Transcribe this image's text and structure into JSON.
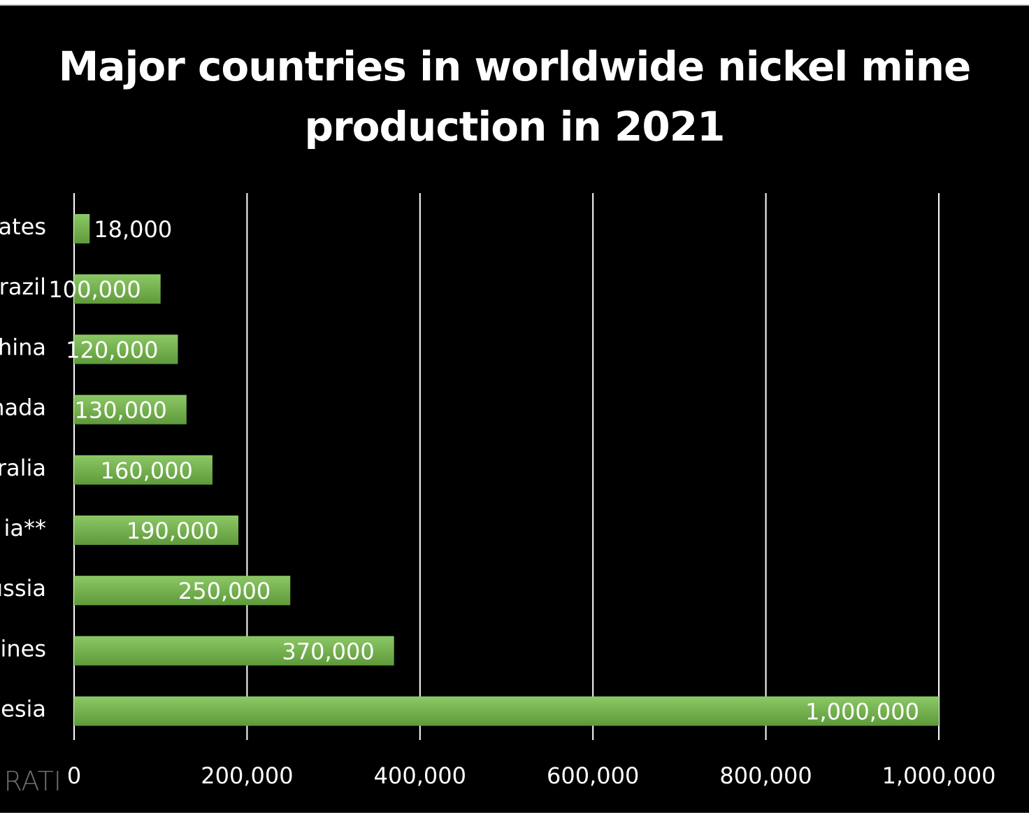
{
  "chart_data": {
    "type": "bar",
    "orientation": "horizontal",
    "title": "Major countries in worldwide nickel mine production in 2021",
    "categories": [
      "ates",
      "razil",
      "hina",
      "nada",
      "ralia",
      "ia**",
      "ussia",
      "ines",
      "esia"
    ],
    "values": [
      18000,
      100000,
      120000,
      130000,
      160000,
      190000,
      250000,
      370000,
      1000000
    ],
    "value_labels": [
      "18,000",
      "100,000",
      "120,000",
      "130,000",
      "160,000",
      "190,000",
      "250,000",
      "370,000",
      "1,000,000"
    ],
    "x_ticks": [
      0,
      200000,
      400000,
      600000,
      800000,
      1000000
    ],
    "x_tick_labels": [
      "0",
      "200,000",
      "400,000",
      "600,000",
      "800,000",
      "1,000,000"
    ],
    "xlim": [
      0,
      1000000
    ],
    "xlabel": "",
    "ylabel": "",
    "grid": "vertical",
    "legend": "none",
    "colors": {
      "bar_top": "#8cc866",
      "bar_bottom": "#5e9a3a",
      "background": "#000000",
      "grid": "#ffffff",
      "text": "#ffffff"
    }
  },
  "watermark": "RATI"
}
